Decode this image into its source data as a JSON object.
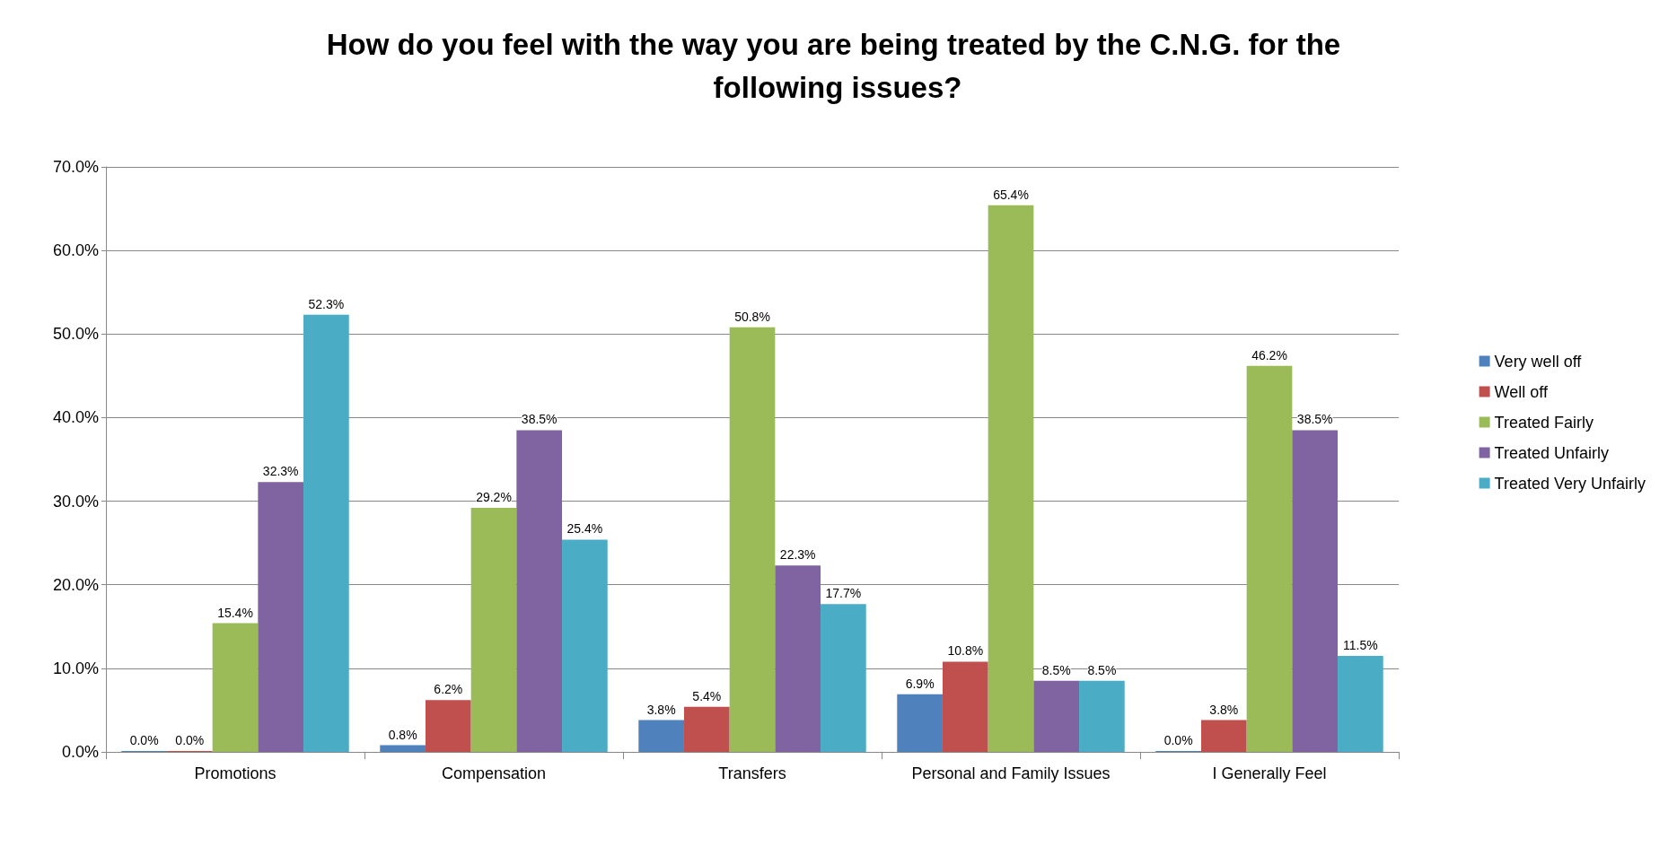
{
  "chart_data": {
    "type": "bar",
    "title": "How do you feel with the way you are being treated by the C.N.G. for the following issues?",
    "categories": [
      "Promotions",
      "Compensation",
      "Transfers",
      "Personal and Family Issues",
      "I Generally Feel"
    ],
    "series": [
      {
        "name": "Very well off",
        "color": "#4f81bd",
        "values": [
          0.0,
          0.8,
          3.8,
          6.9,
          0.0
        ],
        "value_labels": [
          "0.0%",
          "0.8%",
          "3.8%",
          "6.9%",
          "0.0%"
        ]
      },
      {
        "name": "Well off",
        "color": "#c0504d",
        "values": [
          0.0,
          6.2,
          5.4,
          10.8,
          3.8
        ],
        "value_labels": [
          "0.0%",
          "6.2%",
          "5.4%",
          "10.8%",
          "3.8%"
        ]
      },
      {
        "name": "Treated Fairly",
        "color": "#9bbb59",
        "values": [
          15.4,
          29.2,
          50.8,
          65.4,
          46.2
        ],
        "value_labels": [
          "15.4%",
          "29.2%",
          "50.8%",
          "65.4%",
          "46.2%"
        ]
      },
      {
        "name": "Treated Unfairly",
        "color": "#8064a2",
        "values": [
          32.3,
          38.5,
          22.3,
          8.5,
          38.5
        ],
        "value_labels": [
          "32.3%",
          "38.5%",
          "22.3%",
          "8.5%",
          "38.5%"
        ]
      },
      {
        "name": "Treated Very Unfairly",
        "color": "#4bacc6",
        "values": [
          52.3,
          25.4,
          17.7,
          8.5,
          11.5
        ],
        "value_labels": [
          "52.3%",
          "25.4%",
          "17.7%",
          "8.5%",
          "11.5%"
        ]
      }
    ],
    "ylim": [
      0,
      70
    ],
    "yticks": [
      {
        "value": 0,
        "label": "0.0%"
      },
      {
        "value": 10,
        "label": "10.0%"
      },
      {
        "value": 20,
        "label": "20.0%"
      },
      {
        "value": 30,
        "label": "30.0%"
      },
      {
        "value": 40,
        "label": "40.0%"
      },
      {
        "value": 50,
        "label": "50.0%"
      },
      {
        "value": 60,
        "label": "60.0%"
      },
      {
        "value": 70,
        "label": "70.0%"
      }
    ],
    "grid": "y",
    "legend": "right"
  }
}
